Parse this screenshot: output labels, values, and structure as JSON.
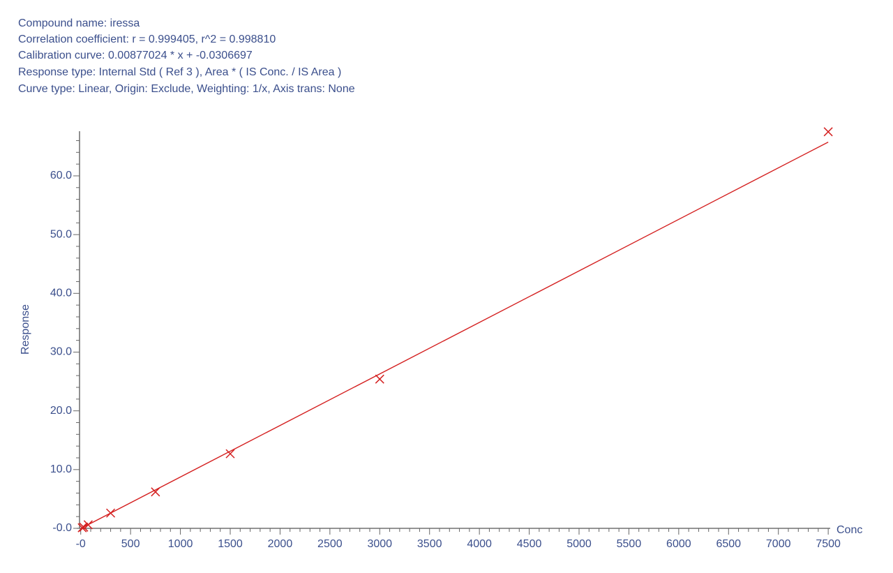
{
  "header": {
    "lines": [
      "Compound name: iressa",
      "Correlation coefficient: r = 0.999405, r^2 = 0.998810",
      "Calibration curve: 0.00877024 * x + -0.0306697",
      "Response type: Internal Std ( Ref 3 ), Area * ( IS Conc. / IS Area )",
      "Curve type: Linear, Origin: Exclude, Weighting: 1/x, Axis trans: None"
    ]
  },
  "chart_data": {
    "type": "scatter",
    "x_label": "Conc",
    "y_label": "Response",
    "x": [
      15,
      30,
      75,
      300,
      750,
      1500,
      3000,
      7500
    ],
    "values": [
      0.1,
      0.2,
      0.6,
      2.6,
      6.2,
      12.7,
      25.4,
      67.5
    ],
    "color": "#d42020",
    "fit_line": {
      "x": [
        0,
        7500
      ],
      "values": [
        -0.0307,
        65.75
      ],
      "color": "#d42020"
    },
    "xlim": [
      -40,
      7520
    ],
    "ylim": [
      0,
      67.6
    ],
    "xticks": [
      {
        "value": 0,
        "label": "-0"
      },
      500,
      1000,
      1500,
      2000,
      2500,
      3000,
      3500,
      4000,
      4500,
      5000,
      5500,
      6000,
      6500,
      7000,
      7500
    ],
    "yticks": [
      {
        "value": 0,
        "label": "-0.0"
      },
      {
        "value": 10,
        "label": "10.0"
      },
      {
        "value": 20,
        "label": "20.0"
      },
      {
        "value": 30,
        "label": "30.0"
      },
      {
        "value": 40,
        "label": "40.0"
      },
      {
        "value": 50,
        "label": "50.0"
      },
      {
        "value": 60,
        "label": "60.0"
      }
    ],
    "grid": false
  }
}
